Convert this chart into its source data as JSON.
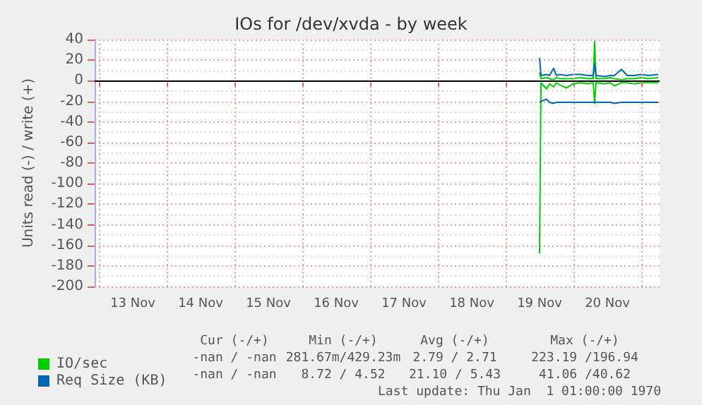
{
  "chart_data": {
    "type": "line",
    "title": "IOs for /dev/xvda - by week",
    "ylabel": "Units read (-) / write (+)",
    "x": [
      "--11-19T12:00",
      "--11-19T12:30",
      "--11-19T14:30",
      "--11-19T15:30",
      "--11-19T17:00",
      "--11-19T18:00",
      "--11-19T19:00",
      "--11-19T21:30",
      "--11-20T00:00",
      "--11-20T02:30",
      "--11-20T05:00",
      "--11-20T07:00",
      "--11-20T07:30",
      "--11-20T08:00",
      "--11-20T11:00",
      "--11-20T13:00",
      "--11-20T14:30",
      "--11-20T17:00",
      "--11-20T19:00",
      "--11-20T21:30",
      "--11-21T00:00",
      "--11-21T02:30",
      "--11-21T06:00"
    ],
    "series": [
      {
        "name": "IO/sec",
        "color": "#00cc00",
        "values": [
          8,
          2,
          3,
          2,
          1,
          3,
          2,
          2,
          2,
          3,
          2,
          2,
          38,
          2,
          2,
          3,
          2,
          1,
          2,
          2,
          3,
          2,
          3
        ]
      },
      {
        "color": "#00cc00",
        "values": [
          -168,
          -2,
          -8,
          -3,
          -6,
          -2,
          -4,
          -7,
          -3,
          -2,
          -3,
          -2,
          -22,
          -2,
          -3,
          -2,
          -5,
          -2,
          -2,
          -3,
          -2,
          -2,
          -2
        ]
      },
      {
        "name": "Req Size (KB)",
        "color": "#0066b3",
        "values": [
          22,
          5,
          6,
          5,
          12,
          5,
          6,
          5,
          6,
          6,
          5,
          5,
          17,
          5,
          4,
          5,
          5,
          11,
          5,
          5,
          6,
          5,
          6
        ]
      },
      {
        "color": "#0066b3",
        "values": [
          -21,
          -20,
          -18,
          -21,
          -22,
          -21,
          -21,
          -21,
          -21,
          -21,
          -21,
          -21,
          -21,
          -21,
          -21,
          -21,
          -22,
          -21,
          -21,
          -21,
          -21,
          -21,
          -21
        ]
      }
    ],
    "xlim": [
      "--11-12T22:30",
      "--11-21T06:30"
    ],
    "xticks": [
      {
        "value": "--11-13",
        "label": null
      },
      {
        "value": "--11-13T12:00",
        "label": "13 Nov"
      },
      {
        "value": "--11-14",
        "label": null
      },
      {
        "value": "--11-14T12:00",
        "label": "14 Nov"
      },
      {
        "value": "--11-15",
        "label": null
      },
      {
        "value": "--11-15T12:00",
        "label": "15 Nov"
      },
      {
        "value": "--11-16",
        "label": null
      },
      {
        "value": "--11-16T12:00",
        "label": "16 Nov"
      },
      {
        "value": "--11-17",
        "label": null
      },
      {
        "value": "--11-17T12:00",
        "label": "17 Nov"
      },
      {
        "value": "--11-18",
        "label": null
      },
      {
        "value": "--11-18T12:00",
        "label": "18 Nov"
      },
      {
        "value": "--11-19",
        "label": null
      },
      {
        "value": "--11-19T12:00",
        "label": "19 Nov"
      },
      {
        "value": "--11-20",
        "label": null
      },
      {
        "value": "--11-20T12:00",
        "label": "20 Nov"
      },
      {
        "value": "--11-21",
        "label": null
      }
    ],
    "ylim": [
      -200,
      40
    ],
    "yticks": [
      -200,
      -180,
      -160,
      -140,
      -120,
      -100,
      -80,
      -60,
      -40,
      -20,
      0,
      20,
      40
    ],
    "ref_lines": [
      {
        "axis": "y",
        "value": 0,
        "color": "#000000"
      }
    ],
    "grid": true,
    "legend": "bottom",
    "marker": "none",
    "line_style": "solid",
    "annotations": [
      "Cur (-/+)",
      "Min (-/+)",
      "Avg (-/+)",
      "Max (-/+)",
      "-nan / -nan",
      "281.67m/429.23m",
      "2.79 / 2.71",
      "223.19 /196.94",
      "-nan / -nan",
      "8.72 / 4.52",
      "21.10 / 5.43",
      "41.06 /40.62",
      "Last update: Thu Jan  1 01:00:00 1970"
    ]
  }
}
